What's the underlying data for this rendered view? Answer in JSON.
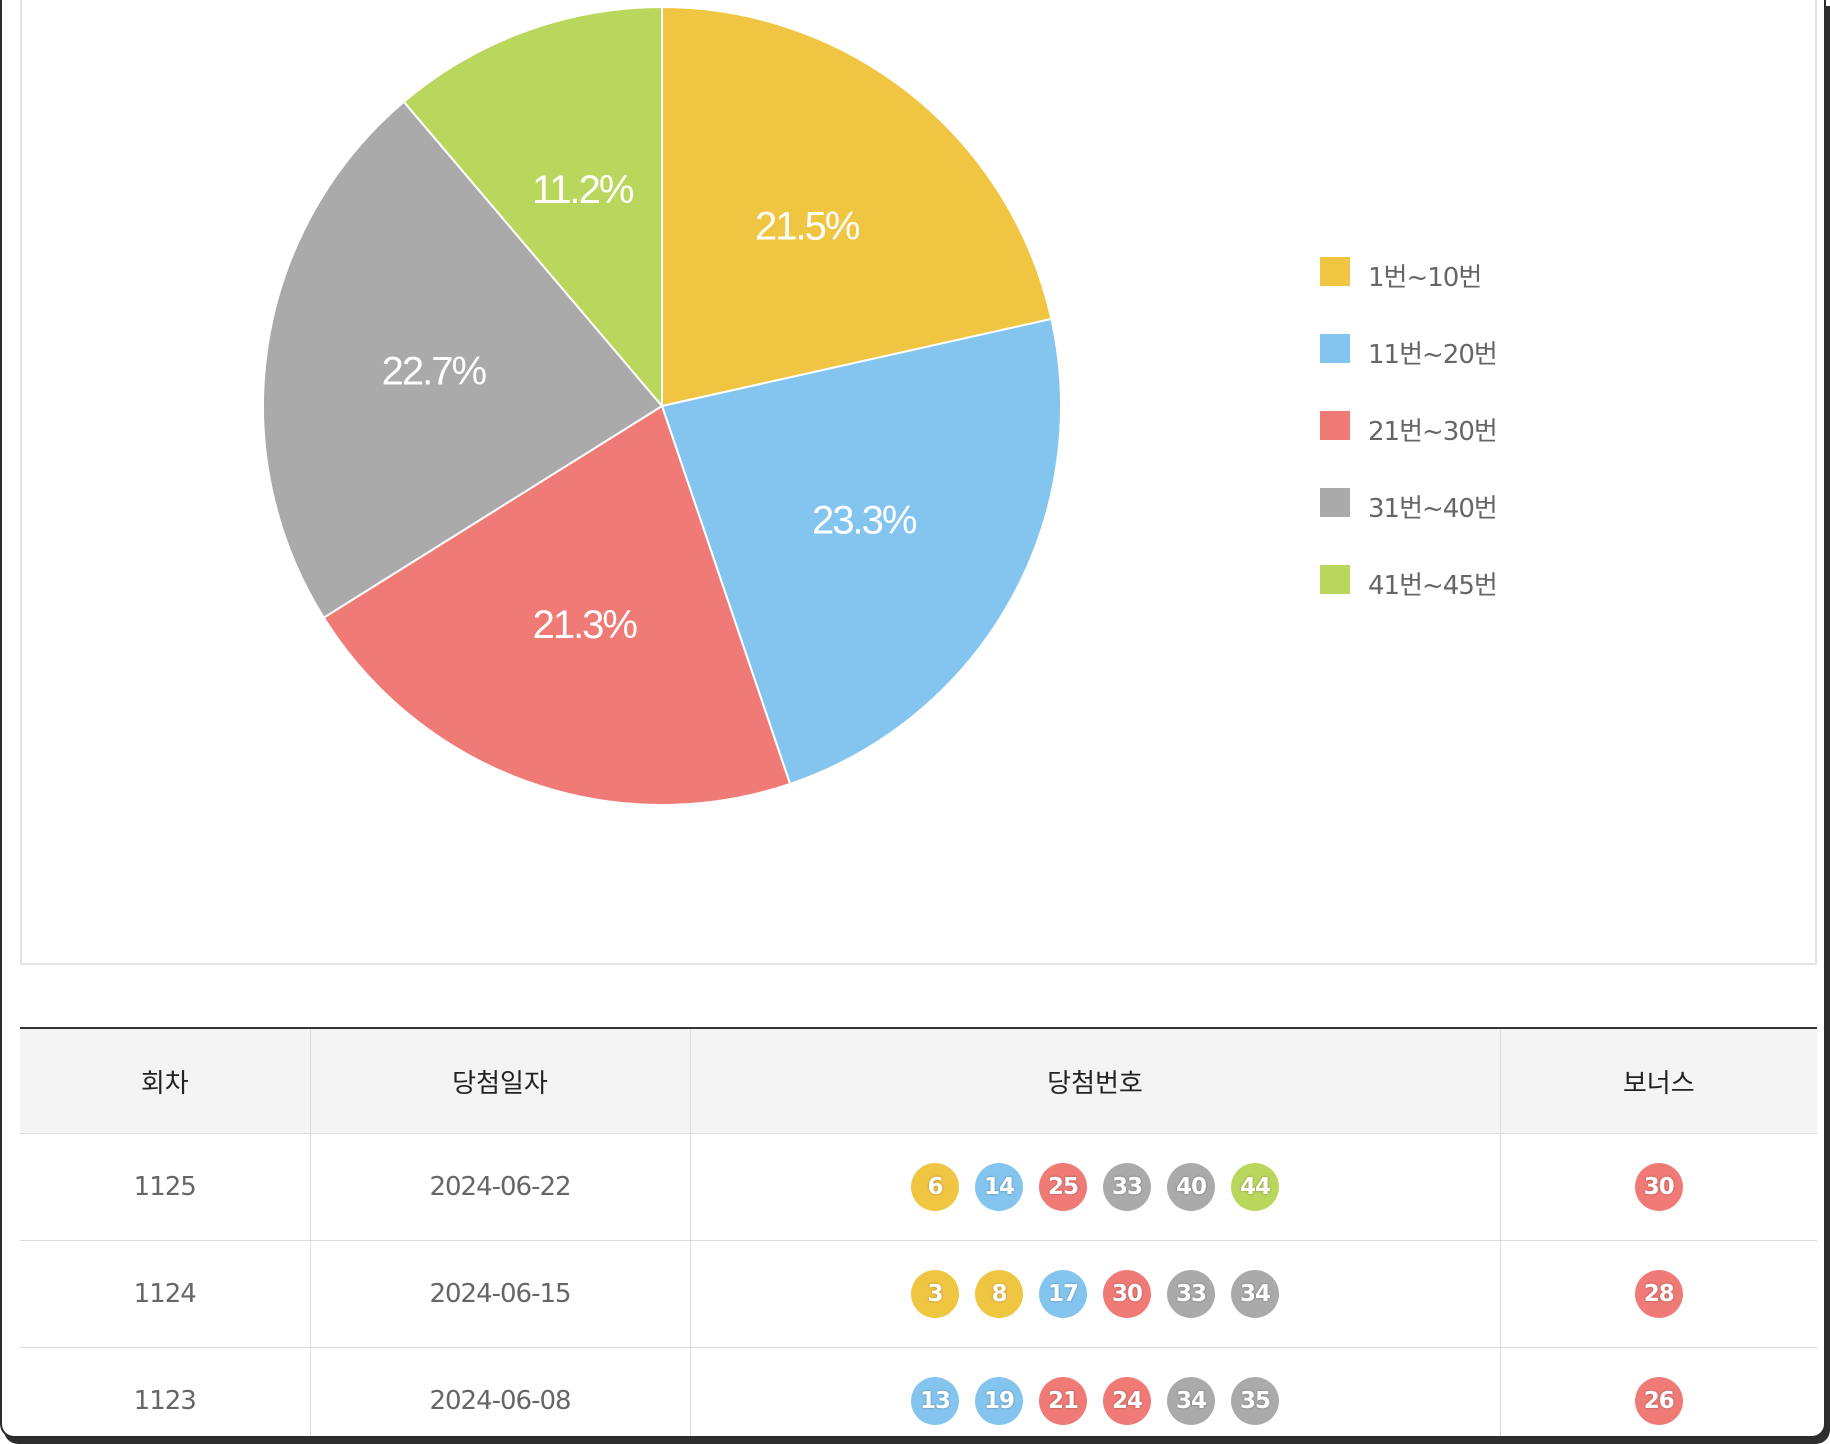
{
  "chart_data": {
    "type": "pie",
    "categories": [
      "1번~10번",
      "11번~20번",
      "21번~30번",
      "31번~40번",
      "41번~45번"
    ],
    "values": [
      21.5,
      23.3,
      21.3,
      22.7,
      11.2
    ],
    "labels": [
      "21.5%",
      "23.3%",
      "21.3%",
      "22.7%",
      "11.2%"
    ],
    "colors": [
      "#f0c541",
      "#83c5ef",
      "#ef7a76",
      "#aaaaaa",
      "#b9d75c"
    ],
    "legend_position": "right"
  },
  "table": {
    "headers": [
      "회차",
      "당첨일자",
      "당첨번호",
      "보너스"
    ],
    "rows": [
      {
        "round": "1125",
        "date": "2024-06-22",
        "numbers": [
          "6",
          "14",
          "25",
          "33",
          "40",
          "44"
        ],
        "bonus": "30"
      },
      {
        "round": "1124",
        "date": "2024-06-15",
        "numbers": [
          "3",
          "8",
          "17",
          "30",
          "33",
          "34"
        ],
        "bonus": "28"
      },
      {
        "round": "1123",
        "date": "2024-06-08",
        "numbers": [
          "13",
          "19",
          "21",
          "24",
          "34",
          "35"
        ],
        "bonus": "26"
      }
    ]
  },
  "ball_colors": {
    "1-10": "#f0c541",
    "11-20": "#83c5ef",
    "21-30": "#ef7a76",
    "31-40": "#aaaaaa",
    "41-45": "#b9d75c"
  }
}
